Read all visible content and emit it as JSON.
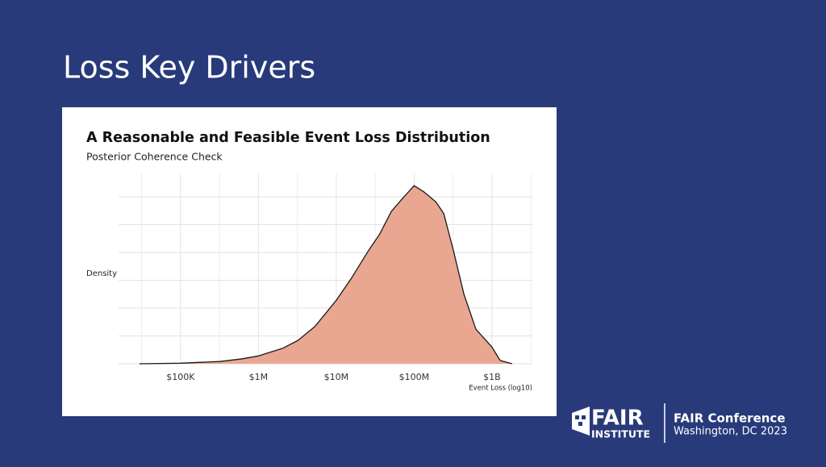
{
  "slide": {
    "title": "Loss Key Drivers"
  },
  "chart_data": {
    "type": "area",
    "title": "A Reasonable and Feasible Event Loss Distribution",
    "subtitle": "Posterior Coherence Check",
    "y_label": "Density",
    "x_label": "Event Loss (log10)",
    "x_log": true,
    "color": "#e9a791",
    "line_color": "#1a1a1a",
    "grid": true,
    "x": [
      29700,
      100000,
      320000,
      625000,
      1000000,
      2060000,
      3230000,
      5320000,
      10000000,
      15700000,
      25300000,
      36100000,
      51100000,
      72900000,
      100000000,
      133000000,
      190000000,
      240000000,
      319000000,
      435000000,
      621000000,
      1000000000,
      1270000000,
      1810000000
    ],
    "values": [
      0,
      0.001,
      0.004,
      0.009,
      0.014,
      0.028,
      0.042,
      0.067,
      0.114,
      0.154,
      0.201,
      0.233,
      0.274,
      0.299,
      0.32,
      0.309,
      0.291,
      0.27,
      0.204,
      0.125,
      0.062,
      0.03,
      0.006,
      0
    ],
    "xlim": [
      16000,
      3300000000
    ],
    "ylim": [
      0,
      0.342
    ],
    "xticks": [
      {
        "value": 100000,
        "label": "$100K"
      },
      {
        "value": 1000000,
        "label": "$1M"
      },
      {
        "value": 10000000,
        "label": "$10M"
      },
      {
        "value": 100000000,
        "label": "$100M"
      },
      {
        "value": 1000000000,
        "label": "$1B"
      }
    ],
    "xminor": [
      31623,
      316228,
      3162278,
      31622777,
      316227766,
      3162277660
    ],
    "ygrid": [
      0,
      0.05,
      0.1,
      0.15,
      0.2,
      0.25,
      0.3
    ]
  },
  "logo": {
    "line1": "FAIR",
    "line2": "INSTITUTE"
  },
  "conference": {
    "title": "FAIR Conference",
    "subtitle": "Washington, DC 2023"
  }
}
